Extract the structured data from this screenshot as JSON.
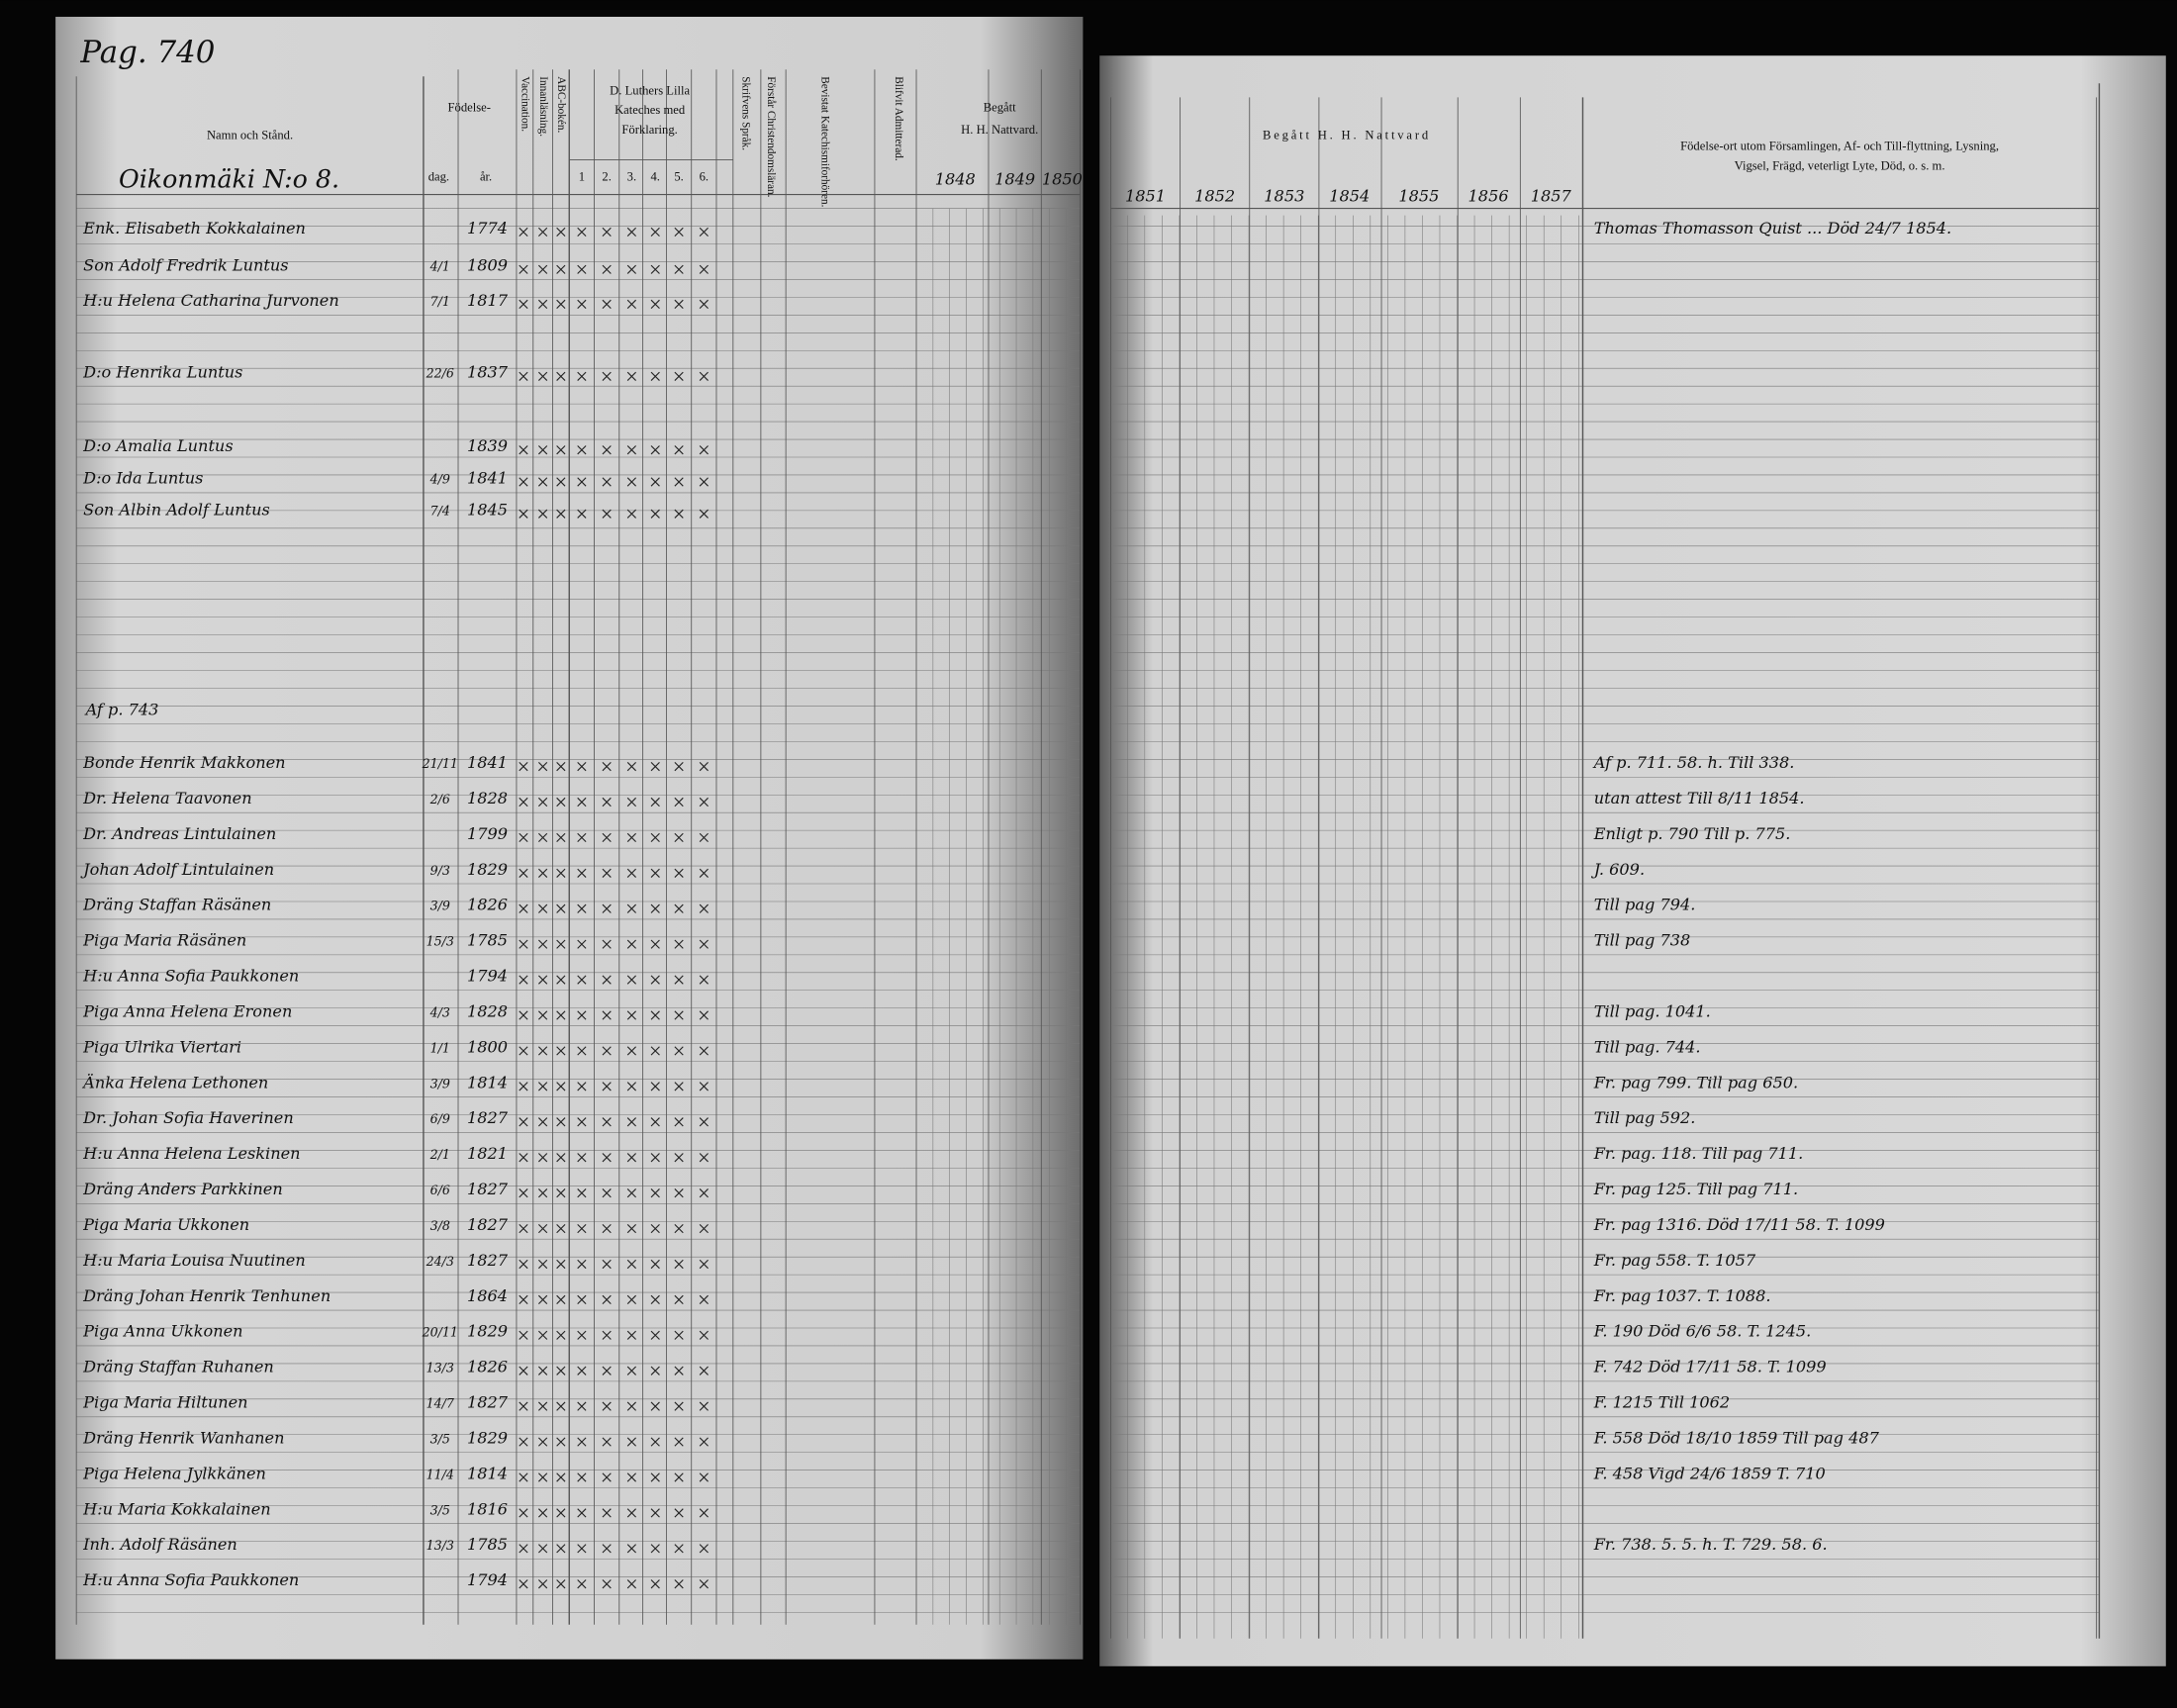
{
  "page_label": "Pag. 740",
  "left_page": {
    "headers": {
      "name": "Namn och Stånd.",
      "birth": "Födelse-",
      "day": "dag.",
      "year": "år.",
      "vaccination": "Vaccination.",
      "reading": "Innanläsning.",
      "abc": "ABC-bokén.",
      "catechism": [
        "D. Luthers Lilla",
        "Kateches med",
        "Förklaring."
      ],
      "cat_cols": [
        "1",
        "2.",
        "3.",
        "4.",
        "5.",
        "6."
      ],
      "writing": "Skrifvens Språk.",
      "christian": "Förstår Christendomsläran.",
      "bevistat": "Bevistat Katechismiforhören.",
      "admitted": "Blifvit Admitterad.",
      "communion": [
        "Begått",
        "H. H. Nattvard."
      ],
      "years": [
        "1848",
        "1849",
        "1850"
      ]
    },
    "household": "Oikonmäki N:o 8.",
    "rows": [
      {
        "name": "Enk. Elisabeth Kokkalainen",
        "year": "1774",
        "remark": "Thomas Thomasson Quist ... Död 24/7 1854."
      },
      {
        "name": "Son Adolf Fredrik Luntus",
        "day": "4/1",
        "year": "1809"
      },
      {
        "name": "H:u Helena Catharina Jurvonen",
        "day": "7/1",
        "year": "1817"
      },
      {
        "name": "D:o Henrika Luntus",
        "day": "22/6",
        "year": "1837"
      },
      {
        "name": "D:o Amalia Luntus",
        "year": "1839"
      },
      {
        "name": "D:o Ida Luntus",
        "day": "4/9",
        "year": "1841"
      },
      {
        "name": "Son Albin Adolf Luntus",
        "day": "7/4",
        "year": "1845"
      }
    ],
    "note": "Af p. 743",
    "lower_rows": [
      {
        "name": "Bonde Henrik Makkonen",
        "day": "21/11",
        "year": "1841",
        "remark": "Af p. 711. 58. h. Till 338."
      },
      {
        "name": "Dr. Helena Taavonen",
        "day": "2/6",
        "year": "1828",
        "remark": "utan attest Till 8/11 1854."
      },
      {
        "name": "Dr. Andreas Lintulainen",
        "year": "1799",
        "remark": "Enligt p. 790 Till p. 775."
      },
      {
        "name": "Johan Adolf Lintulainen",
        "day": "9/3",
        "year": "1829",
        "remark": "J. 609."
      },
      {
        "name": "Dräng Staffan Räsänen",
        "day": "3/9",
        "year": "1826",
        "remark": "Till pag 794."
      },
      {
        "name": "Piga Maria Räsänen",
        "day": "15/3",
        "year": "1785",
        "remark": "Till pag 738"
      },
      {
        "name": "H:u Anna Sofia Paukkonen",
        "year": "1794"
      },
      {
        "name": "Piga Anna Helena Eronen",
        "day": "4/3",
        "year": "1828",
        "remark": "Till pag. 1041."
      },
      {
        "name": "Piga Ulrika Viertari",
        "day": "1/1",
        "year": "1800",
        "remark": "Till pag. 744."
      },
      {
        "name": "Änka Helena Lethonen",
        "day": "3/9",
        "year": "1814",
        "remark": "Fr. pag 799. Till pag 650."
      },
      {
        "name": "Dr. Johan Sofia Haverinen",
        "day": "6/9",
        "year": "1827",
        "remark": "Till pag 592."
      },
      {
        "name": "H:u Anna Helena Leskinen",
        "day": "2/1",
        "year": "1821",
        "remark": "Fr. pag. 118. Till pag 711."
      },
      {
        "name": "Dräng Anders Parkkinen",
        "day": "6/6",
        "year": "1827",
        "remark": "Fr. pag 125. Till pag 711."
      },
      {
        "name": "Piga Maria Ukkonen",
        "day": "3/8",
        "year": "1827",
        "remark": "Fr. pag 1316. Död 17/11 58. T. 1099"
      },
      {
        "name": "H:u Maria Louisa Nuutinen",
        "day": "24/3",
        "year": "1827",
        "remark": "Fr. pag 558. T. 1057"
      },
      {
        "name": "Dräng Johan Henrik Tenhunen",
        "year": "1864",
        "remark": "Fr. pag 1037. T. 1088."
      },
      {
        "name": "Piga Anna Ukkonen",
        "day": "20/11",
        "year": "1829",
        "remark": "F. 190 Död 6/6 58. T. 1245."
      },
      {
        "name": "Dräng Staffan Ruhanen",
        "day": "13/3",
        "year": "1826",
        "remark": "F. 742 Död 17/11 58. T. 1099"
      },
      {
        "name": "Piga Maria Hiltunen",
        "day": "14/7",
        "year": "1827",
        "remark": "F. 1215 Till 1062"
      },
      {
        "name": "Dräng Henrik Wanhanen",
        "day": "3/5",
        "year": "1829",
        "remark": "F. 558 Död 18/10 1859 Till pag 487"
      },
      {
        "name": "Piga Helena Jylkkänen",
        "day": "11/4",
        "year": "1814",
        "remark": "F. 458 Vigd 24/6 1859 T. 710"
      },
      {
        "name": "H:u Maria Kokkalainen",
        "day": "3/5",
        "year": "1816"
      },
      {
        "name": "Inh. Adolf Räsänen",
        "day": "13/3",
        "year": "1785",
        "remark": "Fr. 738. 5. 5. h. T. 729. 58. 6."
      },
      {
        "name": "H:u Anna Sofia Paukkonen",
        "year": "1794"
      }
    ]
  },
  "right_page": {
    "communion": "Begått H. H. Nattvard",
    "years": [
      "1851",
      "1852",
      "1853",
      "1854",
      "1855",
      "1856",
      "1857"
    ],
    "remarks_header": [
      "Födelse-ort utom Församlingen, Af- och Till-flyttning, Lysning,",
      "Vigsel, Frägd, veterligt Lyte, Död, o. s. m."
    ]
  }
}
